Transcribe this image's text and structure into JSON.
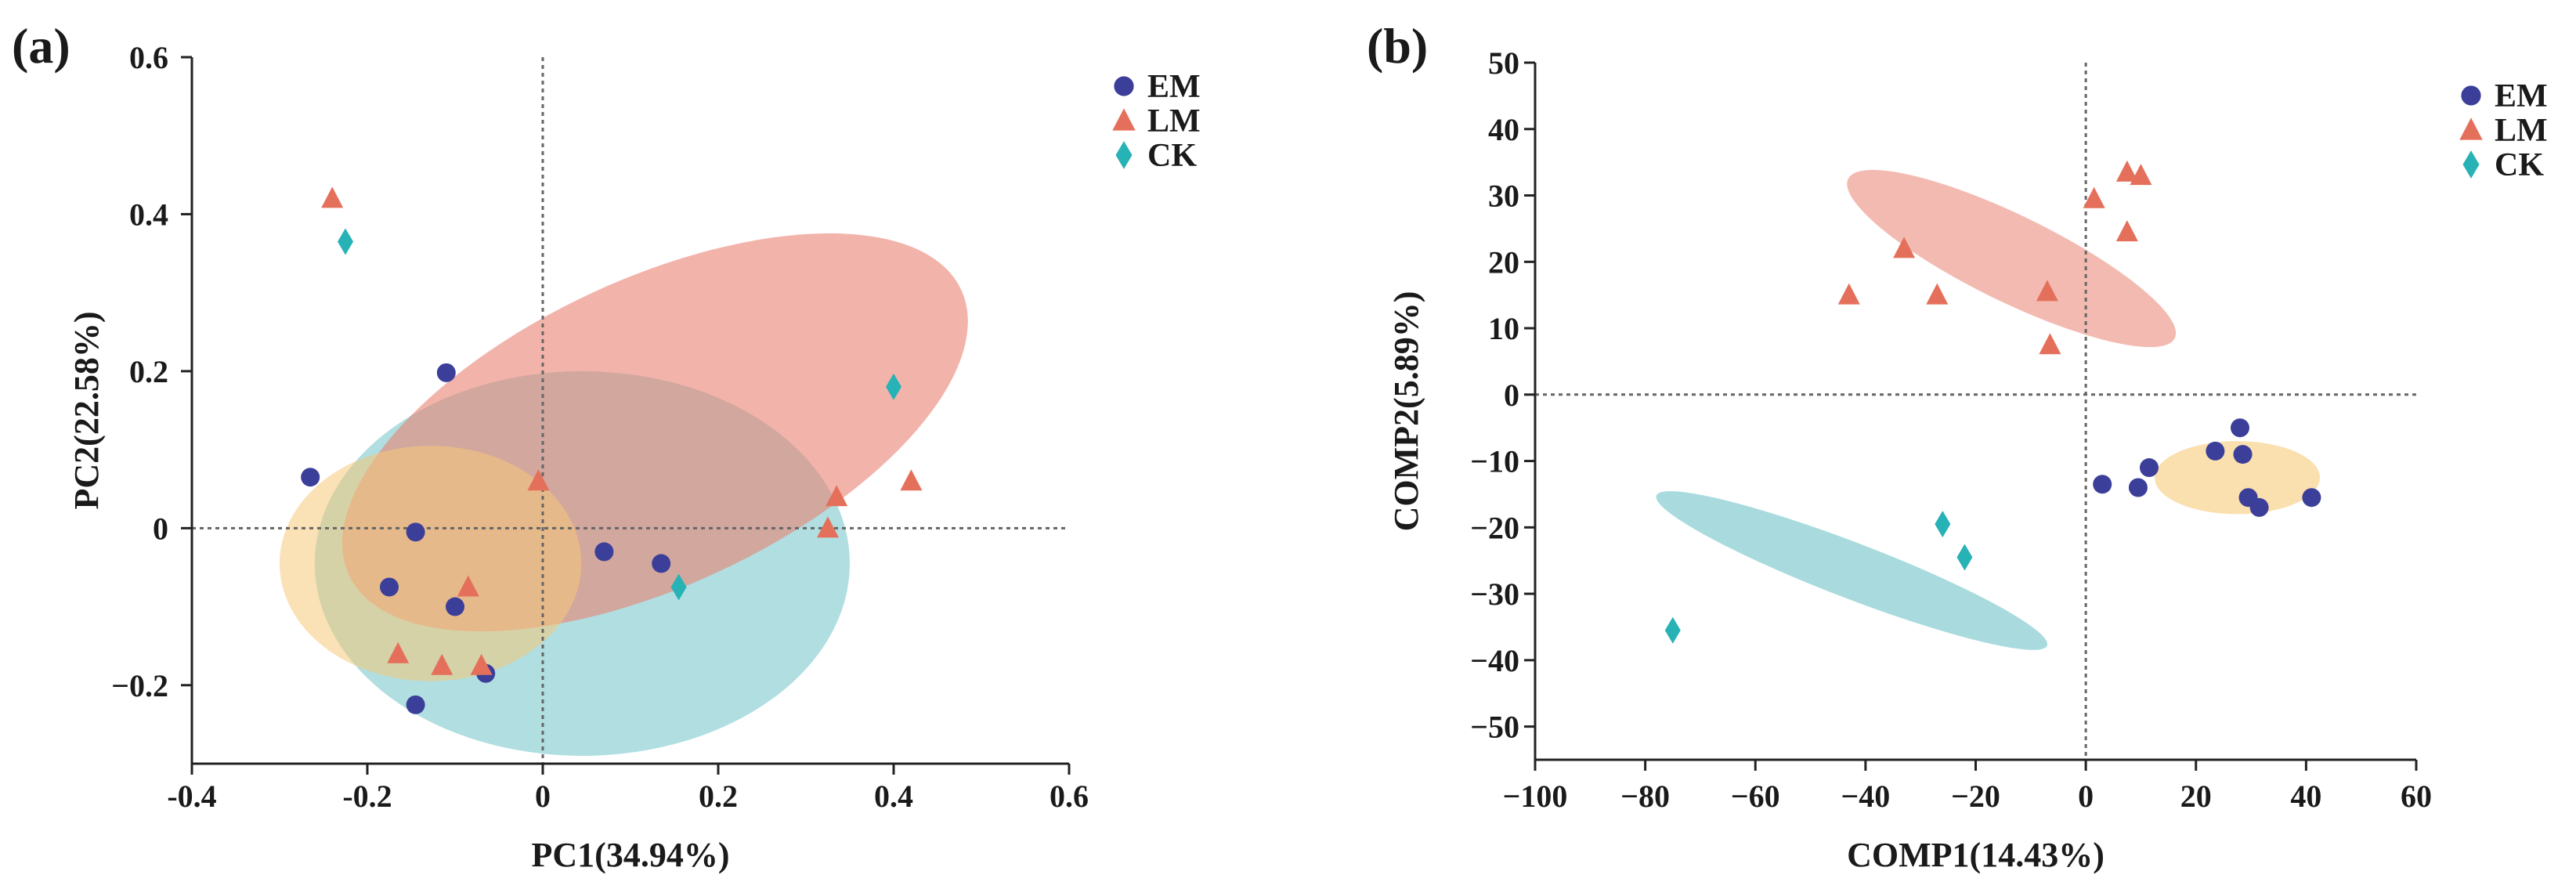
{
  "colors": {
    "EM": "#3b3f99",
    "LM": "#e4705c",
    "CK": "#27b2b6",
    "ellipse_EM": "#f6c97a",
    "ellipse_LM": "#ea8272",
    "ellipse_CK": "#6fc3c8",
    "axis": "#222222",
    "refline": "#666666"
  },
  "chart_data": [
    {
      "panel": "(a)",
      "type": "scatter",
      "xlabel": "PC1(34.94%)",
      "ylabel": "PC2(22.58%)",
      "xlim": [
        -0.4,
        0.6
      ],
      "ylim": [
        -0.3,
        0.6
      ],
      "xticks": [
        -0.4,
        -0.2,
        0,
        0.2,
        0.4,
        0.6
      ],
      "yticks": [
        -0.2,
        0,
        0.2,
        0.4,
        0.6
      ],
      "xtick_labels": [
        "-0.4",
        "-0.2",
        "0",
        "0.2",
        "0.4",
        "0.6"
      ],
      "ytick_labels": [
        "−0.2",
        "0",
        "0.2",
        "0.4",
        "0.6"
      ],
      "reference_lines": {
        "x": 0,
        "y": 0
      },
      "legend_position": "top-right",
      "legend": [
        {
          "name": "EM",
          "marker": "circle"
        },
        {
          "name": "LM",
          "marker": "triangle"
        },
        {
          "name": "CK",
          "marker": "diamond"
        }
      ],
      "ellipses": [
        {
          "group": "CK",
          "center": [
            0.045,
            -0.045
          ],
          "semi_x": 0.305,
          "semi_y": 0.245,
          "angle_deg": 0,
          "opacity": 0.55
        },
        {
          "group": "LM",
          "center": [
            0.128,
            0.122
          ],
          "semi_x": 0.385,
          "semi_y": 0.195,
          "angle_deg": 25,
          "opacity": 0.6
        },
        {
          "group": "EM",
          "center": [
            -0.128,
            -0.045
          ],
          "semi_x": 0.172,
          "semi_y": 0.15,
          "angle_deg": 0,
          "opacity": 0.55
        }
      ],
      "series": [
        {
          "name": "EM",
          "marker": "circle",
          "points": [
            [
              -0.265,
              0.065
            ],
            [
              -0.11,
              0.198
            ],
            [
              -0.145,
              -0.005
            ],
            [
              -0.175,
              -0.075
            ],
            [
              -0.1,
              -0.1
            ],
            [
              -0.065,
              -0.185
            ],
            [
              -0.145,
              -0.225
            ],
            [
              0.07,
              -0.03
            ],
            [
              0.135,
              -0.045
            ]
          ]
        },
        {
          "name": "LM",
          "marker": "triangle",
          "points": [
            [
              -0.24,
              0.42
            ],
            [
              -0.005,
              0.06
            ],
            [
              0.335,
              0.04
            ],
            [
              0.42,
              0.06
            ],
            [
              0.325,
              0.0
            ],
            [
              -0.085,
              -0.075
            ],
            [
              -0.165,
              -0.16
            ],
            [
              -0.115,
              -0.175
            ],
            [
              -0.07,
              -0.175
            ]
          ]
        },
        {
          "name": "CK",
          "marker": "diamond",
          "points": [
            [
              -0.225,
              0.365
            ],
            [
              0.4,
              0.18
            ],
            [
              0.155,
              -0.075
            ]
          ]
        }
      ]
    },
    {
      "panel": "(b)",
      "type": "scatter",
      "xlabel": "COMP1(14.43%)",
      "ylabel": "COMP2(5.89%)",
      "xlim": [
        -100,
        60
      ],
      "ylim": [
        -55,
        50
      ],
      "xticks": [
        -100,
        -80,
        -60,
        -40,
        -20,
        0,
        20,
        40,
        60
      ],
      "yticks": [
        -50,
        -40,
        -30,
        -20,
        -10,
        0,
        10,
        20,
        30,
        40,
        50
      ],
      "xtick_labels": [
        "−100",
        "−80",
        "−60",
        "−40",
        "−20",
        "0",
        "20",
        "40",
        "60"
      ],
      "ytick_labels": [
        "−50",
        "−40",
        "−30",
        "−20",
        "−10",
        "0",
        "10",
        "20",
        "30",
        "40",
        "50"
      ],
      "reference_lines": {
        "x": 0,
        "y": 0
      },
      "legend_position": "top-right",
      "legend": [
        {
          "name": "EM",
          "marker": "circle"
        },
        {
          "name": "LM",
          "marker": "triangle"
        },
        {
          "name": "CK",
          "marker": "diamond"
        }
      ],
      "ellipses": [
        {
          "group": "LM",
          "center": [
            -13.5,
            20.5
          ],
          "semi_x": 33,
          "semi_y": 6.5,
          "angle_deg": -26,
          "opacity": 0.55
        },
        {
          "group": "EM",
          "center": [
            27.5,
            -12.5
          ],
          "semi_x": 15,
          "semi_y": 5.5,
          "angle_deg": 0,
          "opacity": 0.6
        },
        {
          "group": "CK",
          "center": [
            -42.5,
            -26.5
          ],
          "semi_x": 38,
          "semi_y": 4.2,
          "angle_deg": -21,
          "opacity": 0.6
        }
      ],
      "series": [
        {
          "name": "EM",
          "marker": "circle",
          "points": [
            [
              3,
              -13.5
            ],
            [
              9.5,
              -14
            ],
            [
              11.5,
              -11
            ],
            [
              23.5,
              -8.5
            ],
            [
              28,
              -5
            ],
            [
              28.5,
              -9
            ],
            [
              29.5,
              -15.5
            ],
            [
              31.5,
              -17
            ],
            [
              41,
              -15.5
            ]
          ]
        },
        {
          "name": "LM",
          "marker": "triangle",
          "points": [
            [
              -43,
              15
            ],
            [
              -33,
              22
            ],
            [
              -27,
              15
            ],
            [
              -7,
              15.5
            ],
            [
              -6.5,
              7.5
            ],
            [
              1.5,
              29.5
            ],
            [
              7.5,
              33.5
            ],
            [
              10,
              33
            ],
            [
              7.5,
              24.5
            ]
          ]
        },
        {
          "name": "CK",
          "marker": "diamond",
          "points": [
            [
              -75,
              -35.5
            ],
            [
              -26,
              -19.5
            ],
            [
              -22,
              -24.5
            ]
          ]
        }
      ]
    }
  ]
}
